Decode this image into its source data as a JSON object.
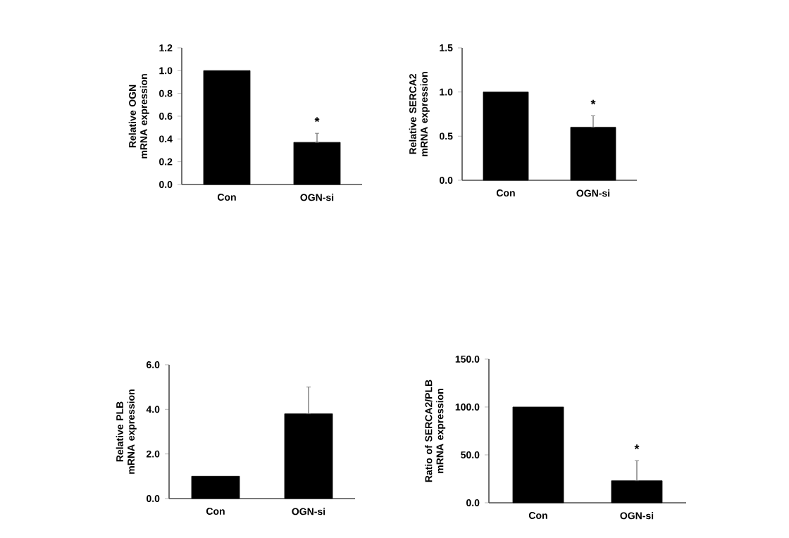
{
  "chart_data": [
    {
      "type": "bar",
      "ylabel": "Relative OGN mRNA expression",
      "categories": [
        "Con",
        "OGN-si"
      ],
      "values": [
        1.0,
        0.37
      ],
      "color": "#000000",
      "errors": [
        null,
        [
          0.37,
          0.45
        ]
      ],
      "ylim": [
        0,
        1.2
      ],
      "yticks": [
        {
          "value": 0,
          "label": "0.0"
        },
        {
          "value": 0.2,
          "label": "0.2"
        },
        {
          "value": 0.4,
          "label": "0.4"
        },
        {
          "value": 0.6,
          "label": "0.6"
        },
        {
          "value": 0.8,
          "label": "0.8"
        },
        {
          "value": 1.0,
          "label": "1.0"
        },
        {
          "value": 1.2,
          "label": "1.2"
        }
      ],
      "annotations": [
        "*"
      ]
    },
    {
      "type": "bar",
      "ylabel": "Relative SERCA2 mRNA expression",
      "categories": [
        "Con",
        "OGN-si"
      ],
      "values": [
        1.0,
        0.6
      ],
      "color": "#000000",
      "errors": [
        null,
        [
          0.6,
          0.73
        ]
      ],
      "ylim": [
        0,
        1.5
      ],
      "yticks": [
        {
          "value": 0,
          "label": "0.0"
        },
        {
          "value": 0.5,
          "label": "0.5"
        },
        {
          "value": 1.0,
          "label": "1.0"
        },
        {
          "value": 1.5,
          "label": "1.5"
        }
      ],
      "annotations": [
        "*"
      ]
    },
    {
      "type": "bar",
      "ylabel": "Relative PLB mRNA expression",
      "categories": [
        "Con",
        "OGN-si"
      ],
      "values": [
        1.0,
        3.8
      ],
      "color": "#000000",
      "errors": [
        null,
        [
          3.8,
          5.0
        ]
      ],
      "ylim": [
        0,
        6.0
      ],
      "yticks": [
        {
          "value": 0,
          "label": "0.0"
        },
        {
          "value": 2,
          "label": "2.0"
        },
        {
          "value": 4,
          "label": "4.0"
        },
        {
          "value": 6,
          "label": "6.0"
        }
      ]
    },
    {
      "type": "bar",
      "ylabel": "Ratio of SERCA2/PLB mRNA expression",
      "categories": [
        "Con",
        "OGN-si"
      ],
      "values": [
        100,
        23
      ],
      "color": "#000000",
      "errors": [
        null,
        [
          23,
          44
        ]
      ],
      "ylim": [
        0,
        150
      ],
      "yticks": [
        {
          "value": 0,
          "label": "0.0"
        },
        {
          "value": 50,
          "label": "50.0"
        },
        {
          "value": 100,
          "label": "100.0"
        },
        {
          "value": 150,
          "label": "150.0"
        }
      ],
      "annotations": [
        "*"
      ]
    }
  ]
}
